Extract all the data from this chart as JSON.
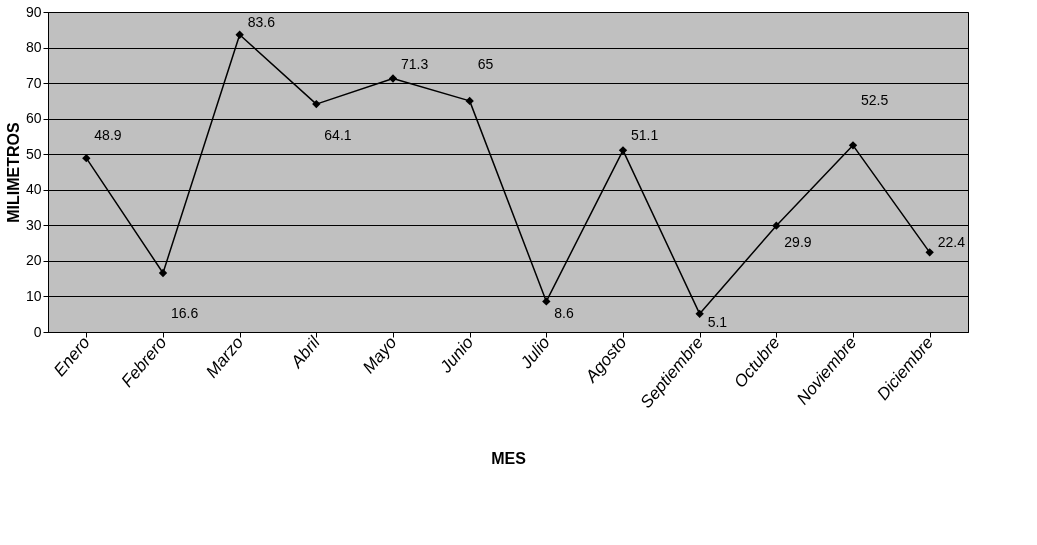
{
  "chart_data": {
    "type": "line",
    "xlabel": "MES",
    "ylabel": "MILIMETROS",
    "categories": [
      "Enero",
      "Febrero",
      "Marzo",
      "Abril",
      "Mayo",
      "Junio",
      "Julio",
      "Agosto",
      "Septiembre",
      "Octubre",
      "Noviembre",
      "Diciembre"
    ],
    "series": [
      {
        "color": "#000000",
        "values": [
          48.9,
          16.6,
          83.6,
          64.1,
          71.3,
          65,
          8.6,
          51.1,
          5.1,
          29.9,
          52.5,
          22.4
        ]
      }
    ],
    "ylim": [
      0,
      90
    ],
    "yticks": [
      0,
      10,
      20,
      30,
      40,
      50,
      60,
      70,
      80,
      90
    ],
    "grid": "y",
    "data_labels": true,
    "marker": "diamond",
    "line_style": "solid"
  }
}
